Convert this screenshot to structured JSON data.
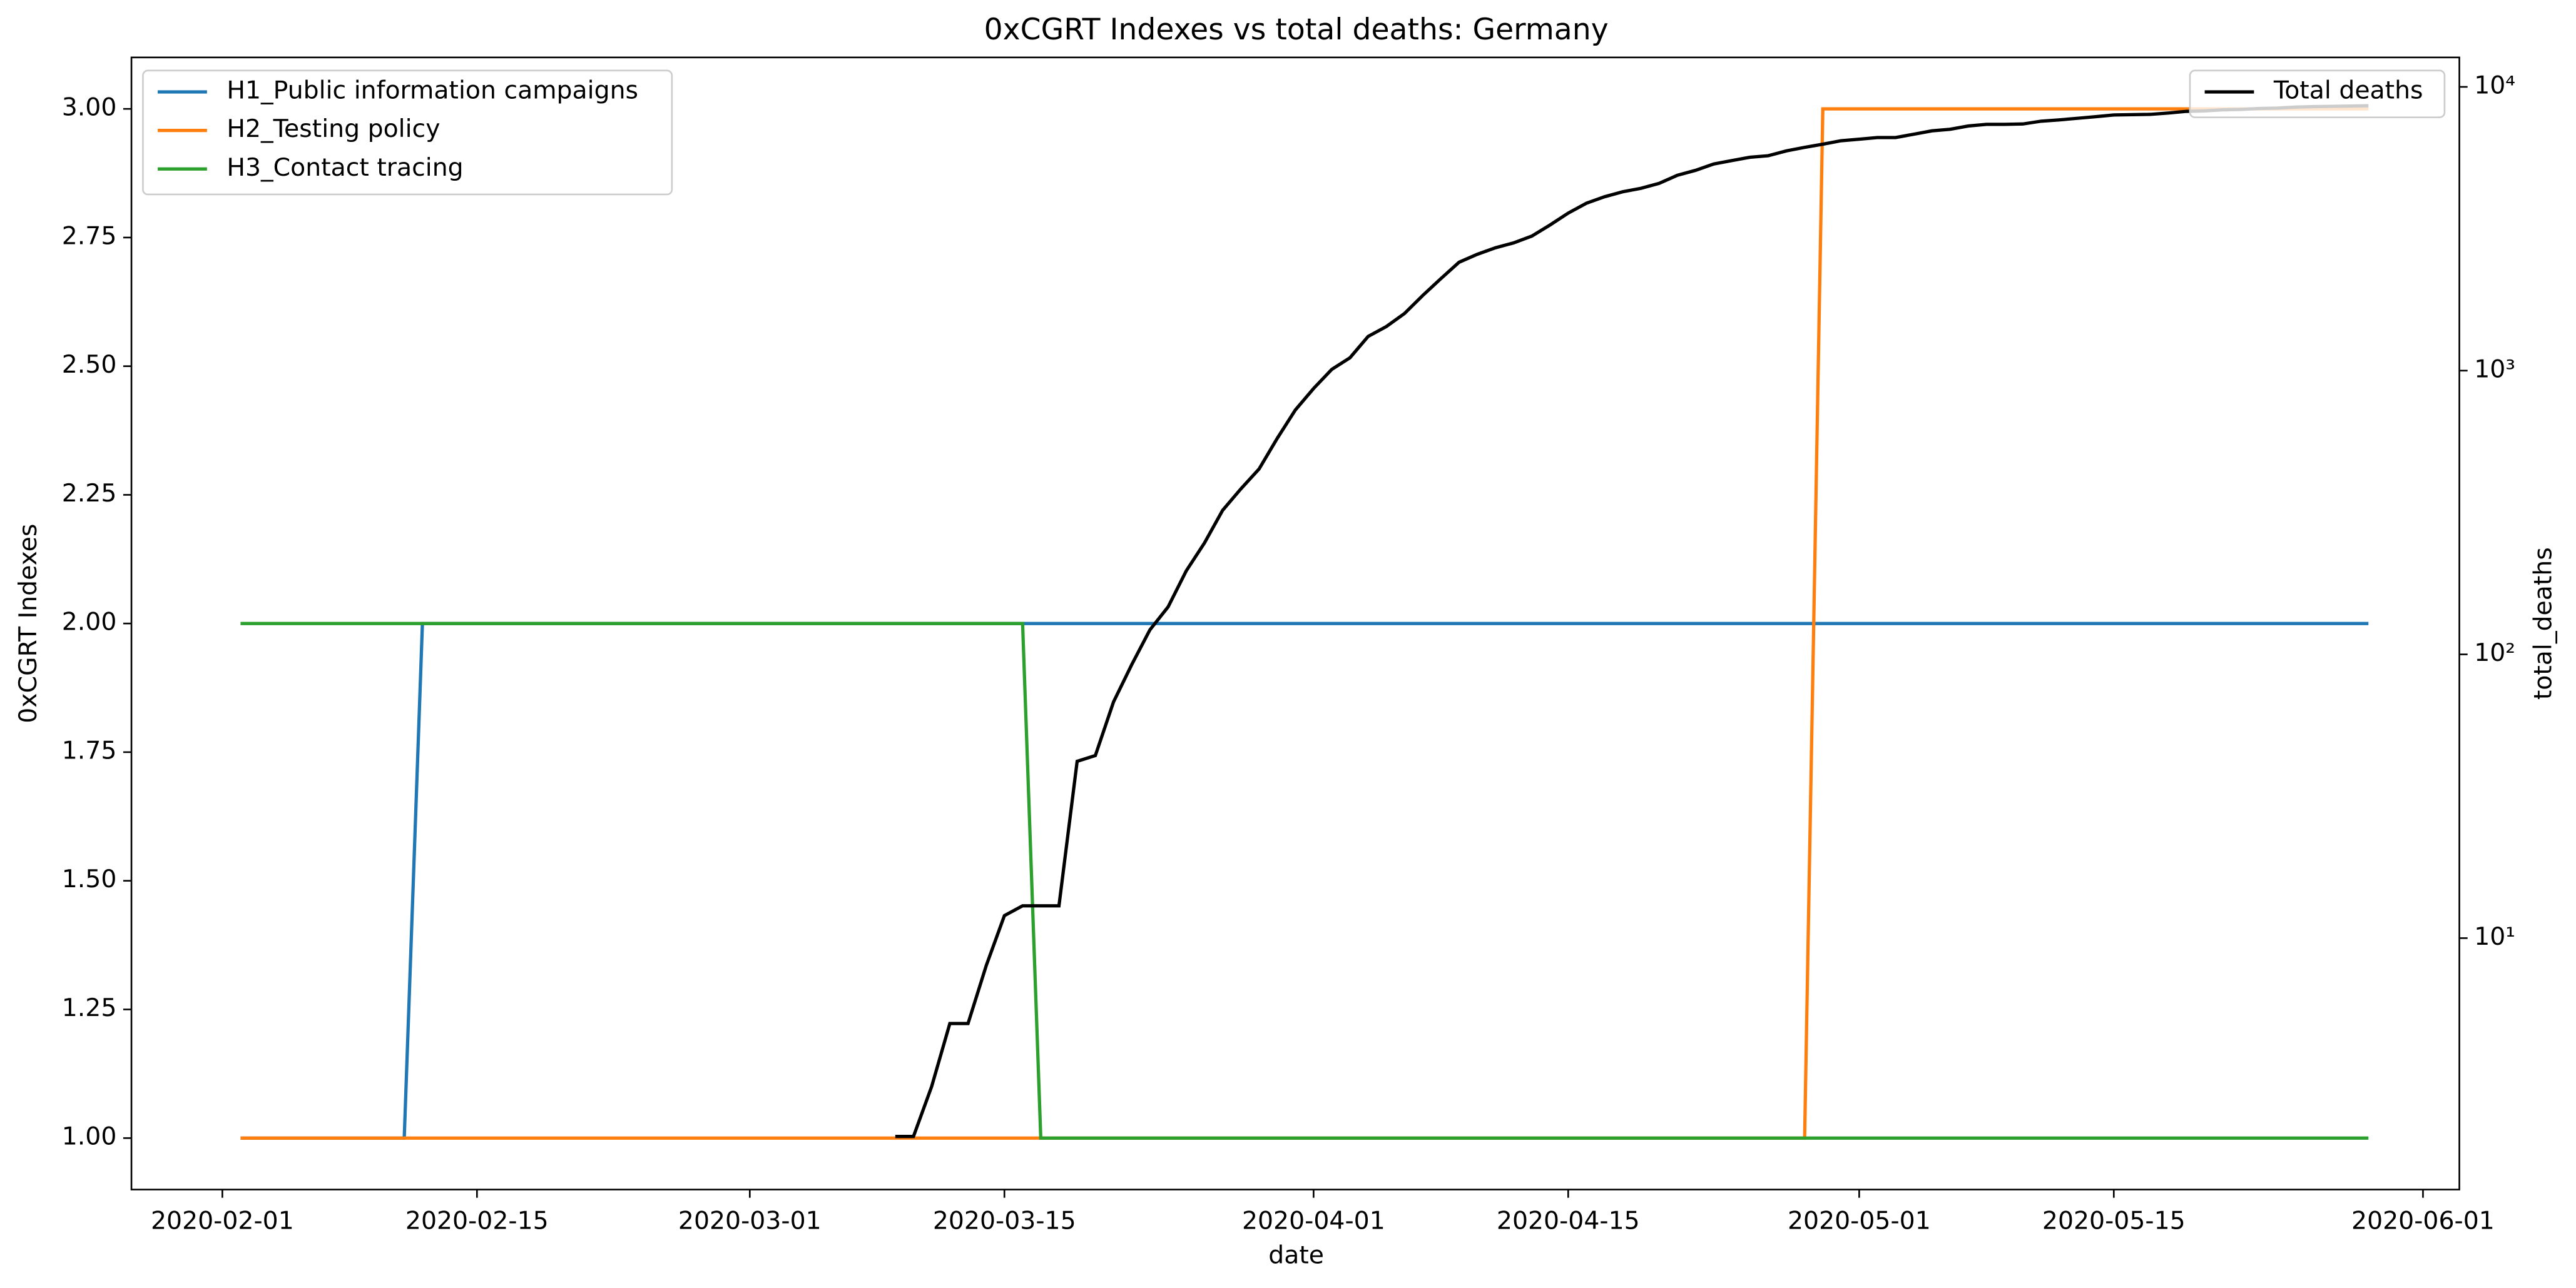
{
  "chart_data": {
    "type": "line",
    "title": "0xCGRT Indexes vs total deaths:  Germany",
    "xlabel": "date",
    "ylabel": "0xCGRT Indexes",
    "y2label": "total_deaths",
    "xlim": [
      "2020-01-27",
      "2020-06-03"
    ],
    "xticks": [
      "2020-02-01",
      "2020-02-15",
      "2020-03-01",
      "2020-03-15",
      "2020-04-01",
      "2020-04-15",
      "2020-05-01",
      "2020-05-15",
      "2020-06-01"
    ],
    "ylim": [
      0.9,
      3.1
    ],
    "yticks": [
      {
        "value": 1,
        "label": "1.00"
      },
      {
        "value": 1.25,
        "label": "1.25"
      },
      {
        "value": 1.5,
        "label": "1.50"
      },
      {
        "value": 1.75,
        "label": "1.75"
      },
      {
        "value": 2,
        "label": "2.00"
      },
      {
        "value": 2.25,
        "label": "2.25"
      },
      {
        "value": 2.5,
        "label": "2.50"
      },
      {
        "value": 2.75,
        "label": "2.75"
      },
      {
        "value": 3,
        "label": "3.00"
      }
    ],
    "y2lim": [
      1.3,
      12700
    ],
    "y2scale": "log",
    "y2ticks": [
      {
        "value": 10,
        "label": "10¹"
      },
      {
        "value": 100,
        "label": "10²"
      },
      {
        "value": 1000,
        "label": "10³"
      },
      {
        "value": 10000,
        "label": "10⁴"
      }
    ],
    "legend": "upper left",
    "legend2": "upper right",
    "series": [
      {
        "name": "H1_Public information campaigns",
        "color": "#1f77b4",
        "x": [
          "2020-02-02",
          "2020-02-11",
          "2020-02-12",
          "2020-05-29"
        ],
        "values": [
          1,
          1,
          2,
          2
        ]
      },
      {
        "name": "H2_Testing policy",
        "color": "#ff7f0e",
        "x": [
          "2020-02-02",
          "2020-04-28",
          "2020-04-29",
          "2020-05-29"
        ],
        "values": [
          1,
          1,
          3,
          3
        ]
      },
      {
        "name": "H3_Contact tracing",
        "color": "#2ca02c",
        "x": [
          "2020-02-02",
          "2020-03-16",
          "2020-03-17",
          "2020-05-29"
        ],
        "values": [
          2,
          2,
          1,
          1
        ]
      },
      {
        "name": "Total deaths",
        "color": "#000000",
        "axis": "y2",
        "x": [
          "2020-03-09",
          "2020-03-10",
          "2020-03-11",
          "2020-03-12",
          "2020-03-13",
          "2020-03-14",
          "2020-03-15",
          "2020-03-16",
          "2020-03-17",
          "2020-03-18",
          "2020-03-19",
          "2020-03-20",
          "2020-03-21",
          "2020-03-22",
          "2020-03-23",
          "2020-03-24",
          "2020-03-25",
          "2020-03-26",
          "2020-03-27",
          "2020-03-28",
          "2020-03-29",
          "2020-03-30",
          "2020-03-31",
          "2020-04-01",
          "2020-04-02",
          "2020-04-03",
          "2020-04-04",
          "2020-04-05",
          "2020-04-06",
          "2020-04-07",
          "2020-04-08",
          "2020-04-09",
          "2020-04-10",
          "2020-04-11",
          "2020-04-12",
          "2020-04-13",
          "2020-04-14",
          "2020-04-15",
          "2020-04-16",
          "2020-04-17",
          "2020-04-18",
          "2020-04-19",
          "2020-04-20",
          "2020-04-21",
          "2020-04-22",
          "2020-04-23",
          "2020-04-24",
          "2020-04-25",
          "2020-04-26",
          "2020-04-27",
          "2020-04-28",
          "2020-04-29",
          "2020-04-30",
          "2020-05-01",
          "2020-05-02",
          "2020-05-03",
          "2020-05-04",
          "2020-05-05",
          "2020-05-06",
          "2020-05-07",
          "2020-05-08",
          "2020-05-09",
          "2020-05-10",
          "2020-05-11",
          "2020-05-12",
          "2020-05-13",
          "2020-05-14",
          "2020-05-15",
          "2020-05-16",
          "2020-05-17",
          "2020-05-18",
          "2020-05-19",
          "2020-05-20",
          "2020-05-21",
          "2020-05-22",
          "2020-05-23",
          "2020-05-24",
          "2020-05-25",
          "2020-05-26",
          "2020-05-27",
          "2020-05-28",
          "2020-05-29"
        ],
        "values": [
          2,
          2,
          3,
          5,
          5,
          8,
          12,
          13,
          13,
          13,
          42,
          44,
          68,
          92,
          122,
          147,
          197,
          247,
          322,
          383,
          450,
          577,
          727,
          865,
          1010,
          1110,
          1320,
          1430,
          1590,
          1840,
          2110,
          2410,
          2570,
          2710,
          2820,
          2980,
          3260,
          3590,
          3890,
          4100,
          4270,
          4390,
          4570,
          4880,
          5080,
          5350,
          5500,
          5650,
          5720,
          5950,
          6120,
          6280,
          6460,
          6540,
          6630,
          6630,
          6810,
          7000,
          7090,
          7280,
          7380,
          7380,
          7400,
          7570,
          7650,
          7750,
          7850,
          7960,
          7980,
          8000,
          8090,
          8200,
          8230,
          8300,
          8330,
          8390,
          8420,
          8490,
          8520,
          8540,
          8560,
          8580
        ]
      }
    ]
  }
}
